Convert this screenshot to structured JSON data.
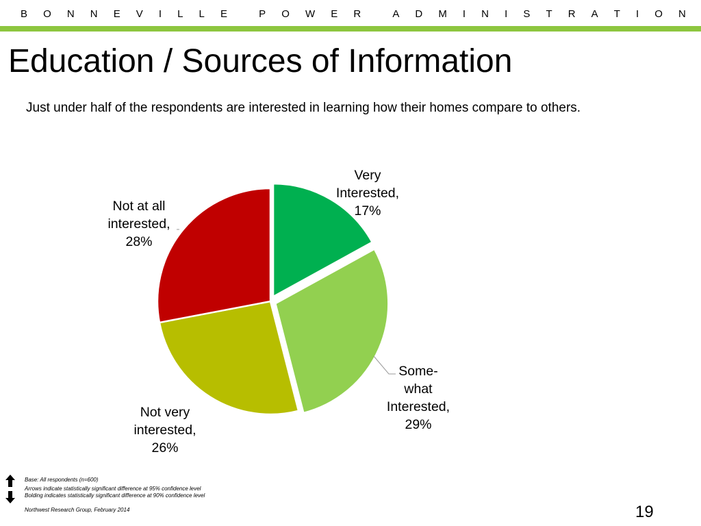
{
  "header": {
    "org_letters": [
      "B",
      "O",
      "N",
      "N",
      "E",
      "V",
      "I",
      "L",
      "L",
      "E",
      " ",
      "P",
      "O",
      "W",
      "E",
      "R",
      " ",
      "A",
      "D",
      "M",
      "I",
      "N",
      "I",
      "S",
      "T",
      "R",
      "A",
      "T",
      "I",
      "O",
      "N"
    ]
  },
  "colors": {
    "accent_bar": "#8dc63f"
  },
  "title": "Education / Sources of Information",
  "subtitle": "Just under half of the respondents are interested in learning how their homes compare to others.",
  "chart_data": {
    "type": "pie",
    "slices": [
      {
        "label": [
          "Very",
          "Interested,",
          "17%"
        ],
        "value": 17,
        "color": "#00b050",
        "exploded": true
      },
      {
        "label": [
          "Some-",
          "what",
          "Interested,",
          "29%"
        ],
        "value": 29,
        "color": "#92d050",
        "exploded": true
      },
      {
        "label": [
          "Not very",
          "interested,",
          "26%"
        ],
        "value": 26,
        "color": "#b7be00",
        "exploded": false
      },
      {
        "label": [
          "Not at all",
          "interested,",
          "28%"
        ],
        "value": 28,
        "color": "#c00000",
        "exploded": false
      }
    ]
  },
  "footnotes": {
    "base": "Base: All respondents (n=600)",
    "arrows": "Arrows indicate statistically significant difference at 95% confidence level",
    "bolding": "Bolding indicates statistically significant difference at 90% confidence level",
    "source": "Northwest Research Group, February 2014"
  },
  "page_number": "19"
}
